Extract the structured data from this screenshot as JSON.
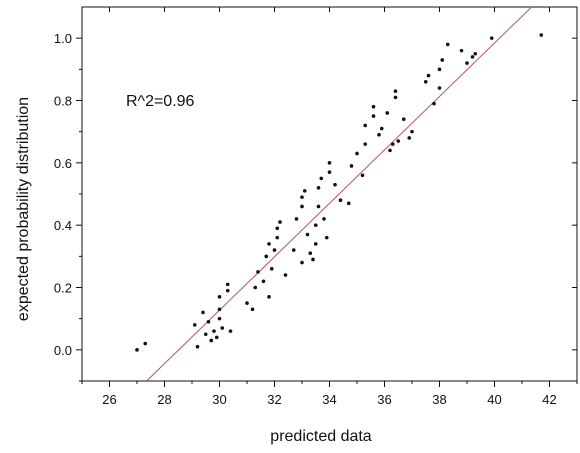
{
  "chart_data": {
    "type": "scatter",
    "xlabel": "predicted data",
    "ylabel": "expected probability distribution",
    "annotation": "R^2=0.96",
    "xlim": [
      25,
      43
    ],
    "ylim": [
      -0.1,
      1.1
    ],
    "x_ticks": [
      26,
      28,
      30,
      32,
      34,
      36,
      38,
      40,
      42
    ],
    "y_ticks": [
      0.0,
      0.2,
      0.4,
      0.6,
      0.8,
      1.0
    ],
    "x_tick_labels": [
      "26",
      "28",
      "30",
      "32",
      "34",
      "36",
      "38",
      "40",
      "42"
    ],
    "y_tick_labels": [
      "0.0",
      "0.2",
      "0.4",
      "0.6",
      "0.8",
      "1.0"
    ],
    "grid": false,
    "colors": {
      "points": "#111111",
      "fit_line": "#b5554f",
      "axes": "#111111"
    },
    "fit_line": {
      "x": [
        27.35,
        41.35
      ],
      "y": [
        -0.1,
        1.1
      ]
    },
    "points": [
      {
        "x": 27.0,
        "y": 0.0
      },
      {
        "x": 27.3,
        "y": 0.02
      },
      {
        "x": 29.1,
        "y": 0.08
      },
      {
        "x": 29.2,
        "y": 0.01
      },
      {
        "x": 29.4,
        "y": 0.12
      },
      {
        "x": 29.5,
        "y": 0.05
      },
      {
        "x": 29.6,
        "y": 0.09
      },
      {
        "x": 29.7,
        "y": 0.03
      },
      {
        "x": 29.8,
        "y": 0.06
      },
      {
        "x": 29.9,
        "y": 0.04
      },
      {
        "x": 30.0,
        "y": 0.1
      },
      {
        "x": 30.0,
        "y": 0.13
      },
      {
        "x": 30.0,
        "y": 0.17
      },
      {
        "x": 30.1,
        "y": 0.07
      },
      {
        "x": 30.3,
        "y": 0.19
      },
      {
        "x": 30.3,
        "y": 0.21
      },
      {
        "x": 30.4,
        "y": 0.06
      },
      {
        "x": 31.0,
        "y": 0.15
      },
      {
        "x": 31.2,
        "y": 0.13
      },
      {
        "x": 31.3,
        "y": 0.2
      },
      {
        "x": 31.4,
        "y": 0.25
      },
      {
        "x": 31.6,
        "y": 0.22
      },
      {
        "x": 31.7,
        "y": 0.3
      },
      {
        "x": 31.8,
        "y": 0.17
      },
      {
        "x": 31.8,
        "y": 0.34
      },
      {
        "x": 31.9,
        "y": 0.26
      },
      {
        "x": 32.0,
        "y": 0.32
      },
      {
        "x": 32.1,
        "y": 0.36
      },
      {
        "x": 32.1,
        "y": 0.39
      },
      {
        "x": 32.2,
        "y": 0.41
      },
      {
        "x": 32.4,
        "y": 0.24
      },
      {
        "x": 32.7,
        "y": 0.32
      },
      {
        "x": 32.8,
        "y": 0.42
      },
      {
        "x": 33.0,
        "y": 0.28
      },
      {
        "x": 33.0,
        "y": 0.46
      },
      {
        "x": 33.0,
        "y": 0.49
      },
      {
        "x": 33.1,
        "y": 0.51
      },
      {
        "x": 33.2,
        "y": 0.37
      },
      {
        "x": 33.3,
        "y": 0.31
      },
      {
        "x": 33.4,
        "y": 0.29
      },
      {
        "x": 33.5,
        "y": 0.34
      },
      {
        "x": 33.5,
        "y": 0.4
      },
      {
        "x": 33.6,
        "y": 0.46
      },
      {
        "x": 33.6,
        "y": 0.52
      },
      {
        "x": 33.7,
        "y": 0.55
      },
      {
        "x": 33.8,
        "y": 0.42
      },
      {
        "x": 33.9,
        "y": 0.36
      },
      {
        "x": 34.0,
        "y": 0.57
      },
      {
        "x": 34.0,
        "y": 0.6
      },
      {
        "x": 34.2,
        "y": 0.53
      },
      {
        "x": 34.4,
        "y": 0.48
      },
      {
        "x": 34.7,
        "y": 0.47
      },
      {
        "x": 34.8,
        "y": 0.59
      },
      {
        "x": 35.0,
        "y": 0.63
      },
      {
        "x": 35.2,
        "y": 0.56
      },
      {
        "x": 35.3,
        "y": 0.66
      },
      {
        "x": 35.3,
        "y": 0.72
      },
      {
        "x": 35.6,
        "y": 0.75
      },
      {
        "x": 35.6,
        "y": 0.78
      },
      {
        "x": 35.8,
        "y": 0.69
      },
      {
        "x": 35.9,
        "y": 0.71
      },
      {
        "x": 36.1,
        "y": 0.76
      },
      {
        "x": 36.2,
        "y": 0.64
      },
      {
        "x": 36.3,
        "y": 0.66
      },
      {
        "x": 36.4,
        "y": 0.81
      },
      {
        "x": 36.4,
        "y": 0.83
      },
      {
        "x": 36.5,
        "y": 0.67
      },
      {
        "x": 36.7,
        "y": 0.74
      },
      {
        "x": 36.9,
        "y": 0.68
      },
      {
        "x": 37.0,
        "y": 0.7
      },
      {
        "x": 37.5,
        "y": 0.86
      },
      {
        "x": 37.6,
        "y": 0.88
      },
      {
        "x": 37.8,
        "y": 0.79
      },
      {
        "x": 38.0,
        "y": 0.84
      },
      {
        "x": 38.0,
        "y": 0.9
      },
      {
        "x": 38.1,
        "y": 0.93
      },
      {
        "x": 38.3,
        "y": 0.98
      },
      {
        "x": 38.8,
        "y": 0.96
      },
      {
        "x": 39.0,
        "y": 0.92
      },
      {
        "x": 39.2,
        "y": 0.94
      },
      {
        "x": 39.3,
        "y": 0.95
      },
      {
        "x": 39.9,
        "y": 1.0
      },
      {
        "x": 41.7,
        "y": 1.01
      }
    ]
  }
}
